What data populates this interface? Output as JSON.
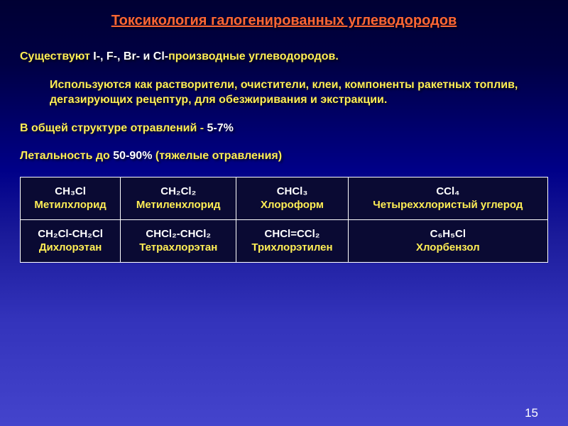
{
  "title": "Токсикология галогенированных углеводородов",
  "para1": {
    "prefix": "Существуют ",
    "hl": "I-, F-, Br- и Cl-",
    "suffix": "производные углеводородов."
  },
  "para2": "Используются как растворители, очистители, клеи, компоненты ракетных топлив, дегазирующих рецептур,   для обезжиривания и экстракции.",
  "para3": {
    "prefix": "В общей структуре отравлений - ",
    "hl": "5-7%"
  },
  "para4": {
    "prefix": "Летальность до ",
    "hl": "50-90%",
    "suffix": "   (тяжелые отравления)"
  },
  "table": {
    "r1": {
      "c1": {
        "f": "CH₃Cl",
        "n": "Метилхлорид"
      },
      "c2": {
        "f": "CH₂Cl₂",
        "n": "Метиленхлорид"
      },
      "c3": {
        "f": "CHCl₃",
        "n": "Хлороформ"
      },
      "c4": {
        "f": "CCl₄",
        "n": "Четыреххлористый углерод"
      }
    },
    "r2": {
      "c1": {
        "f": "CH₂Cl-CH₂Cl",
        "n": "Дихлорэтан"
      },
      "c2": {
        "f": "CHCl₂-CHCl₂",
        "n": "Тетрахлорэтан"
      },
      "c3": {
        "f": "CHCl=CCl₂",
        "n": "Трихлорэтилен"
      },
      "c4": {
        "f": "C₆H₅Cl",
        "n": "Хлорбензол"
      }
    }
  },
  "pageNumber": "15",
  "colors": {
    "title": "#ff6633",
    "body": "#ffee55",
    "highlight": "#ffffff",
    "tableBg": "#0a0a33",
    "tableBorder": "#ffffff"
  },
  "fonts": {
    "title_pt": 20,
    "body_pt": 16,
    "table_pt": 15
  }
}
